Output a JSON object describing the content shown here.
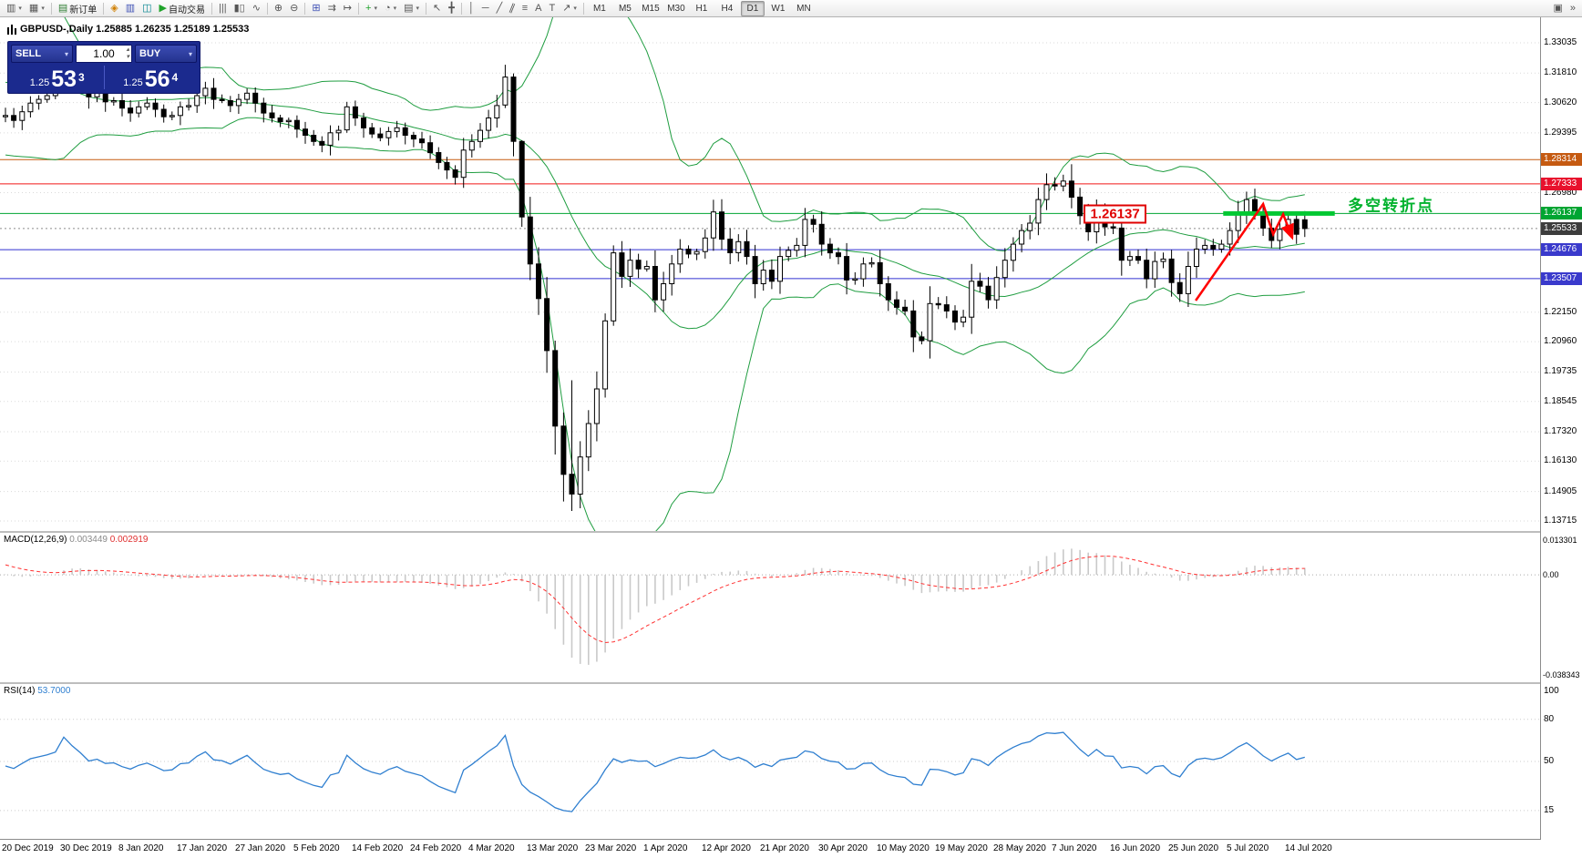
{
  "ui": {
    "caret_down": "▾",
    "caret_up": "▴"
  },
  "toolbar": {
    "buttons": [
      {
        "id": "new-chart",
        "glyph": "▥",
        "dropdown": true
      },
      {
        "id": "profiles",
        "glyph": "▦",
        "dropdown": true
      },
      {
        "id": "sep1",
        "sep": true
      },
      {
        "id": "new-order",
        "glyph": "▤",
        "glyph_color": "#2e7d32",
        "label": "新订单"
      },
      {
        "id": "sep2",
        "sep": true
      },
      {
        "id": "alerts",
        "glyph": "◈",
        "glyph_color": "#d07f00"
      },
      {
        "id": "market-depth",
        "glyph": "▥",
        "glyph_color": "#3f51b5"
      },
      {
        "id": "strategy-tester",
        "glyph": "◫",
        "glyph_color": "#00838f"
      },
      {
        "id": "autotrading",
        "glyph": "▶",
        "glyph_color": "#1fa32a",
        "label": "自动交易"
      },
      {
        "id": "sep3",
        "sep": true
      },
      {
        "id": "chart-bars",
        "glyph": "|||"
      },
      {
        "id": "chart-candles",
        "glyph": "▮▯"
      },
      {
        "id": "chart-line",
        "glyph": "∿"
      },
      {
        "id": "sep4",
        "sep": true
      },
      {
        "id": "zoom-in",
        "glyph": "⊕"
      },
      {
        "id": "zoom-out",
        "glyph": "⊖"
      },
      {
        "id": "sep5",
        "sep": true
      },
      {
        "id": "tile-windows",
        "glyph": "⊞",
        "glyph_color": "#3f51b5"
      },
      {
        "id": "auto-scroll",
        "glyph": "⇉"
      },
      {
        "id": "chart-shift",
        "glyph": "↦"
      },
      {
        "id": "sep6",
        "sep": true
      },
      {
        "id": "indicators",
        "glyph": "+",
        "glyph_color": "#1fa32a",
        "dropdown": true
      },
      {
        "id": "periods",
        "glyph": "◔",
        "dropdown": true
      },
      {
        "id": "templates",
        "glyph": "▤",
        "dropdown": true
      },
      {
        "id": "sep7",
        "sep": true
      },
      {
        "id": "cursor",
        "glyph": "↖"
      },
      {
        "id": "crosshair",
        "glyph": "╋"
      },
      {
        "id": "sep8",
        "sep": true
      },
      {
        "id": "vertical-line",
        "glyph": "│"
      },
      {
        "id": "horizontal-line",
        "glyph": "─"
      },
      {
        "id": "trendline",
        "glyph": "╱"
      },
      {
        "id": "channel",
        "glyph": "∥",
        "cls": "slant"
      },
      {
        "id": "fibonacci",
        "glyph": "≡"
      },
      {
        "id": "text",
        "glyph": "A"
      },
      {
        "id": "text-label",
        "glyph": "T"
      },
      {
        "id": "arrow-tools",
        "glyph": "↗",
        "dropdown": true
      },
      {
        "id": "sep9",
        "sep": true
      }
    ],
    "timeframes": [
      "M1",
      "M5",
      "M15",
      "M30",
      "H1",
      "H4",
      "D1",
      "W1",
      "MN"
    ],
    "active_timeframe": "D1",
    "right_buttons": [
      {
        "id": "window-arrange",
        "glyph": "▣"
      },
      {
        "id": "toolbar-more",
        "glyph": "»"
      }
    ]
  },
  "symbol_header": {
    "title": "GBPUSD-,Daily  1.25885 1.26235 1.25189 1.25533"
  },
  "trade_panel": {
    "sell_label": "SELL",
    "buy_label": "BUY",
    "lot_value": "1.00",
    "sell_price_small": "1.25",
    "sell_price_big": "53",
    "sell_price_sup": "3",
    "buy_price_small": "1.25",
    "buy_price_big": "56",
    "buy_price_sup": "4"
  },
  "annotations": {
    "price_flag": "1.26137",
    "turning_point_text": "多空转折点"
  },
  "indicators": {
    "macd": {
      "label": "MACD(12,26,9)",
      "value1": "0.003449",
      "value2": "0.002919",
      "axis": [
        "0.013301",
        "0.00",
        "-0.038343"
      ]
    },
    "rsi": {
      "label": "RSI(14)",
      "value": "53.7000",
      "axis": [
        "100",
        "80",
        "50",
        "15"
      ],
      "levels": [
        80,
        50,
        15
      ]
    }
  },
  "price_axis": {
    "plain_ticks": [
      "1.33035",
      "1.31810",
      "1.30620",
      "1.29395",
      "1.26980",
      "1.22150",
      "1.20960",
      "1.19735",
      "1.18545",
      "1.17320",
      "1.16130",
      "1.14905",
      "1.13715"
    ],
    "line_labels": [
      {
        "text": "1.28314",
        "price": 1.28314,
        "bg": "#C55A11"
      },
      {
        "text": "1.27333",
        "price": 1.27333,
        "bg": "#E8112D"
      },
      {
        "text": "1.26137",
        "price": 1.26137,
        "bg": "#00A532"
      },
      {
        "text": "1.25533",
        "price": 1.25533,
        "bg": "#3C3C3C"
      },
      {
        "text": "1.24676",
        "price": 1.24676,
        "bg": "#3A3ACC"
      },
      {
        "text": "1.23507",
        "price": 1.23507,
        "bg": "#3A3ACC"
      }
    ]
  },
  "chart_data": {
    "type": "candlestick",
    "symbol": "GBPUSD-",
    "period": "Daily",
    "current_ohlc": {
      "open": 1.25885,
      "high": 1.26235,
      "low": 1.25189,
      "close": 1.25533
    },
    "x_tick_labels": [
      "20 Dec 2019",
      "30 Dec 2019",
      "8 Jan 2020",
      "17 Jan 2020",
      "27 Jan 2020",
      "5 Feb 2020",
      "14 Feb 2020",
      "24 Feb 2020",
      "4 Mar 2020",
      "13 Mar 2020",
      "23 Mar 2020",
      "1 Apr 2020",
      "12 Apr 2020",
      "21 Apr 2020",
      "30 Apr 2020",
      "10 May 2020",
      "19 May 2020",
      "28 May 2020",
      "7 Jun 2020",
      "16 Jun 2020",
      "25 Jun 2020",
      "5 Jul 2020",
      "14 Jul 2020"
    ],
    "candles_per_tick": 7,
    "warmup_bars": 30,
    "closes": [
      1.285,
      1.2872,
      1.2898,
      1.2882,
      1.2921,
      1.2948,
      1.293,
      1.2962,
      1.2991,
      1.3008,
      1.2982,
      1.3021,
      1.3048,
      1.3079,
      1.3122,
      1.3158,
      1.3202,
      1.3348,
      1.3478,
      1.3421,
      1.333,
      1.3252,
      1.3178,
      1.3122,
      1.308,
      1.3042,
      1.3002,
      1.2981,
      1.2999,
      1.3005,
      1.301,
      1.299,
      1.3025,
      1.306,
      1.3075,
      1.309,
      1.311,
      1.3255,
      1.32,
      1.315,
      1.3085,
      1.31,
      1.3065,
      1.307,
      1.304,
      1.302,
      1.3045,
      1.306,
      1.3035,
      1.3005,
      1.301,
      1.3045,
      1.305,
      1.309,
      1.312,
      1.3075,
      1.307,
      1.305,
      1.3075,
      1.31,
      1.306,
      1.302,
      1.3,
      1.2985,
      1.299,
      1.2955,
      1.293,
      1.2905,
      1.289,
      1.294,
      1.295,
      1.3045,
      1.3,
      1.296,
      1.2935,
      1.292,
      1.2945,
      1.296,
      1.293,
      1.2915,
      1.29,
      1.286,
      1.282,
      1.279,
      1.276,
      1.287,
      1.2905,
      1.295,
      1.3,
      1.305,
      1.3165,
      1.2905,
      1.26,
      1.241,
      1.227,
      1.206,
      1.1755,
      1.156,
      1.148,
      1.163,
      1.1765,
      1.1905,
      1.218,
      1.2455,
      1.236,
      1.2425,
      1.239,
      1.24,
      1.2265,
      1.233,
      1.241,
      1.247,
      1.245,
      1.246,
      1.2515,
      1.262,
      1.251,
      1.2455,
      1.25,
      1.244,
      1.233,
      1.2385,
      1.234,
      1.244,
      1.2465,
      1.2485,
      1.259,
      1.257,
      1.249,
      1.2455,
      1.244,
      1.2345,
      1.235,
      1.241,
      1.2415,
      1.233,
      1.2265,
      1.2235,
      1.222,
      1.2115,
      1.21,
      1.225,
      1.2245,
      1.222,
      1.2175,
      1.2195,
      1.234,
      1.232,
      1.2265,
      1.2355,
      1.2425,
      1.249,
      1.2545,
      1.2575,
      1.267,
      1.273,
      1.2725,
      1.2745,
      1.268,
      1.2605,
      1.254,
      1.2625,
      1.256,
      1.2555,
      1.2425,
      1.244,
      1.2425,
      1.235,
      1.242,
      1.243,
      1.2335,
      1.229,
      1.24,
      1.247,
      1.2485,
      1.247,
      1.249,
      1.2545,
      1.2615,
      1.267,
      1.262,
      1.2555,
      1.2505,
      1.255,
      1.259,
      1.253,
      1.25533
    ],
    "overrides": {
      "7": [
        1.3112,
        1.3284,
        1.3098,
        1.3255
      ],
      "41": [
        1.2952,
        1.3065,
        1.294,
        1.3045
      ],
      "60": [
        1.3052,
        1.3215,
        1.304,
        1.3165
      ],
      "61": [
        1.3165,
        1.318,
        1.2845,
        1.2905
      ],
      "62": [
        1.2905,
        1.291,
        1.256,
        1.26
      ],
      "66": [
        1.206,
        1.21,
        1.164,
        1.1755
      ],
      "67": [
        1.1755,
        1.181,
        1.145,
        1.156
      ],
      "68": [
        1.156,
        1.194,
        1.1412,
        1.148
      ],
      "72": [
        1.1905,
        1.221,
        1.187,
        1.218
      ],
      "73": [
        1.218,
        1.2485,
        1.216,
        1.2455
      ],
      "128": [
        1.2745,
        1.2813,
        1.2635,
        1.268
      ],
      "156": [
        1.25885,
        1.26235,
        1.25189,
        1.25533
      ]
    },
    "indicator_params": {
      "bollinger_period": 20,
      "bollinger_dev": 2,
      "macd": [
        12,
        26,
        9
      ],
      "rsi_period": 14
    },
    "hlines": [
      {
        "price": 1.28314,
        "color": "#C55A11",
        "style": "solid"
      },
      {
        "price": 1.27333,
        "color": "#F01818",
        "style": "solid"
      },
      {
        "price": 1.26137,
        "color": "#00A532",
        "style": "solid"
      },
      {
        "price": 1.25533,
        "color": "#8c8c8c",
        "style": "dotted"
      },
      {
        "price": 1.24676,
        "color": "#3030D0",
        "style": "solid"
      },
      {
        "price": 1.23507,
        "color": "#3030D0",
        "style": "solid"
      }
    ],
    "colors": {
      "bull": "#FFFFFF",
      "bear": "#000000",
      "wick": "#000000",
      "bollinger": "#1F9D40",
      "macd_hist": "#c9c9c9",
      "macd_signal": "#FF3030",
      "rsi": "#2F7FD0"
    },
    "drawings": {
      "resistance_flag": {
        "text": "1.26137",
        "bar": 137.8,
        "price": 1.2612,
        "color": "#E00000"
      },
      "thick_segment": {
        "price": 1.26137,
        "bar_from": 146.2,
        "bar_to": 159.6,
        "color": "#00C832",
        "width": 5
      },
      "turning_point_label": {
        "text": "多空转折点",
        "bar": 161.2,
        "price": 1.2652,
        "color": "#00B22D"
      },
      "zigzag": {
        "color": "#FF0000",
        "width": 2.5,
        "points": [
          [
            142.9,
            1.2262
          ],
          [
            151.0,
            1.2652
          ],
          [
            152.2,
            1.253
          ],
          [
            153.4,
            1.2611
          ],
          [
            154.5,
            1.2515
          ]
        ]
      }
    }
  }
}
